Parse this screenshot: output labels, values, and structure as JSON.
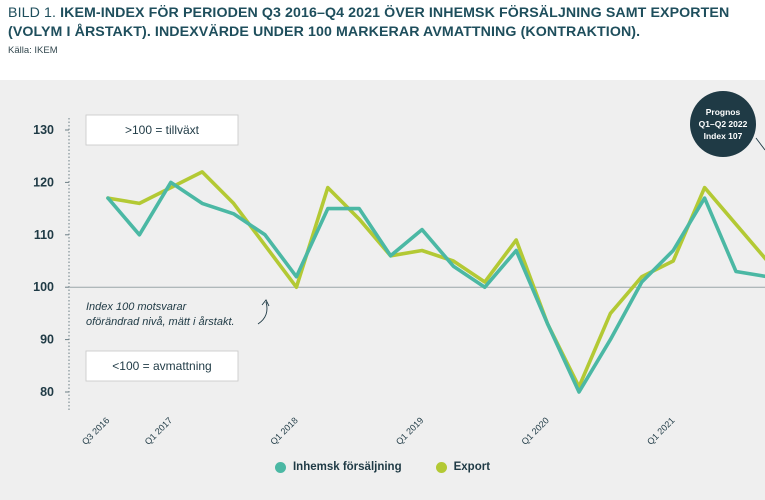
{
  "header": {
    "fig_label": "BILD 1.",
    "title": "IKEM-INDEX FÖR PERIODEN Q3 2016–Q4 2021 ÖVER INHEMSK FÖRSÄLJNING SAMT EXPORTEN (VOLYM I ÅRSTAKT). INDEXVÄRDE UNDER 100 MARKERAR AVMATTNING (KONTRAKTION).",
    "title_line1": "IKEM-INDEX FÖR PERIODEN Q3 2016–Q4 2021 ÖVER INHEMSK FÖRSÄLJNING SAMT EXPORTEN",
    "title_line2": "(VOLYM I ÅRSTAKT). INDEXVÄRDE UNDER 100 MARKERAR AVMATTNING (KONTRAKTION).",
    "source": "Källa: IKEM"
  },
  "colors": {
    "inhemsk": "#4bb8a4",
    "export": "#b3c934",
    "text": "#1f3a45",
    "badge": "#1f3a45"
  },
  "chart_data": {
    "type": "line",
    "x": [
      "Q3 2016",
      "Q4 2016",
      "Q1 2017",
      "Q2 2017",
      "Q3 2017",
      "Q4 2017",
      "Q1 2018",
      "Q2 2018",
      "Q3 2018",
      "Q4 2018",
      "Q1 2019",
      "Q2 2019",
      "Q3 2019",
      "Q4 2019",
      "Q1 2020",
      "Q2 2020",
      "Q3 2020",
      "Q4 2020",
      "Q1 2021",
      "Q2 2021",
      "Q3 2021",
      "Q4 2021"
    ],
    "tick_labels": [
      "Q3 2016",
      "Q1 2017",
      "Q1 2018",
      "Q1 2019",
      "Q1 2020",
      "Q1 2021"
    ],
    "yticks": [
      80,
      90,
      100,
      110,
      120,
      130
    ],
    "ylim": [
      78,
      134
    ],
    "series": [
      {
        "name": "Inhemsk försäljning",
        "color": "#4bb8a4",
        "values": [
          117,
          110,
          120,
          116,
          114,
          110,
          102,
          115,
          115,
          106,
          111,
          104,
          100,
          107,
          93,
          80,
          90,
          101,
          107,
          117,
          103,
          102
        ]
      },
      {
        "name": "Export",
        "color": "#b3c934",
        "values": [
          117,
          116,
          119,
          122,
          116,
          108,
          100,
          119,
          113,
          106,
          107,
          105,
          101,
          109,
          93,
          81,
          95,
          102,
          105,
          119,
          112,
          105
        ]
      }
    ],
    "reference_line": 100,
    "annotations": {
      "growth_box": ">100 = tillväxt",
      "contraction_box": "<100 = avmattning",
      "note_line1": "Index 100 motsvarar",
      "note_line2": "oförändrad nivå, mätt i årstakt.",
      "forecast_line1": "Prognos",
      "forecast_line2": "Q1–Q2 2022",
      "forecast_line3": "Index 107"
    },
    "legend_position": "bottom-center"
  }
}
